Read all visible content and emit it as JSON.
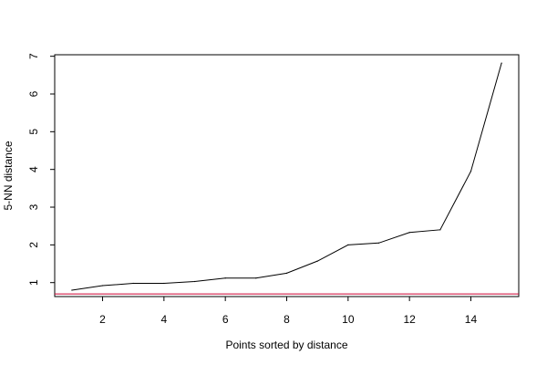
{
  "chart_data": {
    "type": "line",
    "xlabel": "Points sorted by distance",
    "ylabel": "5-NN distance",
    "xlim": [
      0.44,
      15.56
    ],
    "ylim": [
      0.63,
      7.04
    ],
    "x_ticks": [
      2,
      4,
      6,
      8,
      10,
      12,
      14
    ],
    "y_ticks": [
      1,
      2,
      3,
      4,
      5,
      6,
      7
    ],
    "series": [
      {
        "color": "#000000",
        "x": [
          1,
          2,
          3,
          4,
          5,
          6,
          7,
          8,
          9,
          10,
          11,
          12,
          13,
          14,
          15
        ],
        "values": [
          0.8,
          0.92,
          0.98,
          0.98,
          1.03,
          1.12,
          1.12,
          1.25,
          1.57,
          2.0,
          2.05,
          2.33,
          2.4,
          3.95,
          6.82
        ]
      }
    ],
    "reference_line": {
      "orientation": "horizontal",
      "y": 0.7,
      "color": "#cc0033"
    },
    "grid": false
  }
}
